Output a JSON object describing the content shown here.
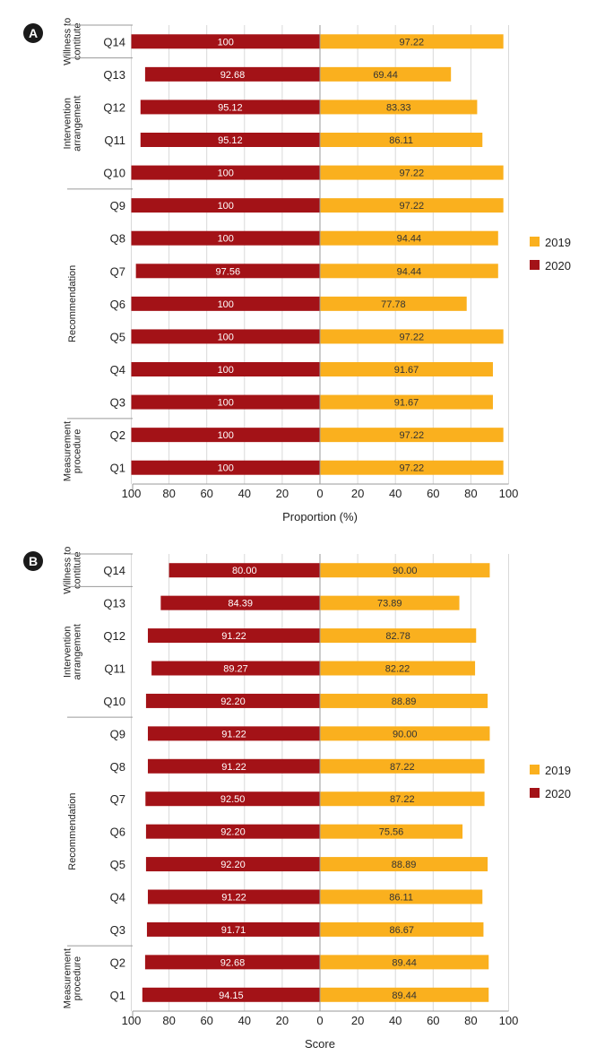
{
  "chart_data": [
    {
      "panel": "A",
      "type": "bar",
      "orientation": "horizontal-diverging",
      "xlabel": "Proportion (%)",
      "xlim": [
        -100,
        100
      ],
      "tick_labels": [
        "100",
        "80",
        "60",
        "40",
        "20",
        "0",
        "20",
        "40",
        "60",
        "80",
        "100"
      ],
      "categories": [
        "Q14",
        "Q13",
        "Q12",
        "Q11",
        "Q10",
        "Q9",
        "Q8",
        "Q7",
        "Q6",
        "Q5",
        "Q4",
        "Q3",
        "Q2",
        "Q1"
      ],
      "groups": [
        {
          "label": "Willness to contitute",
          "lines": [
            "Willness to",
            "contitute"
          ],
          "rows": [
            "Q14"
          ]
        },
        {
          "label": "Intervention arrangement",
          "lines": [
            "Intervention",
            "arrangement"
          ],
          "rows": [
            "Q13",
            "Q12",
            "Q11",
            "Q10"
          ]
        },
        {
          "label": "Recommendation",
          "lines": [
            "Recommendation"
          ],
          "rows": [
            "Q9",
            "Q8",
            "Q7",
            "Q6",
            "Q5",
            "Q4",
            "Q3"
          ]
        },
        {
          "label": "Measurement procedure",
          "lines": [
            "Measurement",
            "procedure"
          ],
          "rows": [
            "Q2",
            "Q1"
          ]
        }
      ],
      "series": [
        {
          "name": "2020",
          "side": "left",
          "values": [
            100,
            92.68,
            95.12,
            95.12,
            100,
            100,
            100,
            97.56,
            100,
            100,
            100,
            100,
            100,
            100
          ],
          "labels": [
            "100",
            "92.68",
            "95.12",
            "95.12",
            "100",
            "100",
            "100",
            "97.56",
            "100",
            "100",
            "100",
            "100",
            "100",
            "100"
          ]
        },
        {
          "name": "2019",
          "side": "right",
          "values": [
            97.22,
            69.44,
            83.33,
            86.11,
            97.22,
            97.22,
            94.44,
            94.44,
            77.78,
            97.22,
            91.67,
            91.67,
            97.22,
            97.22
          ],
          "labels": [
            "97.22",
            "69.44",
            "83.33",
            "86.11",
            "97.22",
            "97.22",
            "94.44",
            "94.44",
            "77.78",
            "97.22",
            "91.67",
            "91.67",
            "97.22",
            "97.22"
          ]
        }
      ],
      "legend": [
        "2019",
        "2020"
      ],
      "legend_position": "right"
    },
    {
      "panel": "B",
      "type": "bar",
      "orientation": "horizontal-diverging",
      "xlabel": "Score",
      "xlim": [
        -100,
        100
      ],
      "tick_labels": [
        "100",
        "80",
        "60",
        "40",
        "20",
        "0",
        "20",
        "40",
        "60",
        "80",
        "100"
      ],
      "categories": [
        "Q14",
        "Q13",
        "Q12",
        "Q11",
        "Q10",
        "Q9",
        "Q8",
        "Q7",
        "Q6",
        "Q5",
        "Q4",
        "Q3",
        "Q2",
        "Q1"
      ],
      "groups": [
        {
          "label": "Willness to contitute",
          "lines": [
            "Willness to",
            "contitute"
          ],
          "rows": [
            "Q14"
          ]
        },
        {
          "label": "Intervention arrangement",
          "lines": [
            "Intervention",
            "arrangement"
          ],
          "rows": [
            "Q13",
            "Q12",
            "Q11",
            "Q10"
          ]
        },
        {
          "label": "Recommendation",
          "lines": [
            "Recommendation"
          ],
          "rows": [
            "Q9",
            "Q8",
            "Q7",
            "Q6",
            "Q5",
            "Q4",
            "Q3"
          ]
        },
        {
          "label": "Measurement procedure",
          "lines": [
            "Measurement",
            "procedure"
          ],
          "rows": [
            "Q2",
            "Q1"
          ]
        }
      ],
      "series": [
        {
          "name": "2020",
          "side": "left",
          "values": [
            80.0,
            84.39,
            91.22,
            89.27,
            92.2,
            91.22,
            91.22,
            92.5,
            92.2,
            92.2,
            91.22,
            91.71,
            92.68,
            94.15
          ],
          "labels": [
            "80.00",
            "84.39",
            "91.22",
            "89.27",
            "92.20",
            "91.22",
            "91.22",
            "92.50",
            "92.20",
            "92.20",
            "91.22",
            "91.71",
            "92.68",
            "94.15"
          ]
        },
        {
          "name": "2019",
          "side": "right",
          "values": [
            90.0,
            73.89,
            82.78,
            82.22,
            88.89,
            90.0,
            87.22,
            87.22,
            75.56,
            88.89,
            86.11,
            86.67,
            89.44,
            89.44
          ],
          "labels": [
            "90.00",
            "73.89",
            "82.78",
            "82.22",
            "88.89",
            "90.00",
            "87.22",
            "87.22",
            "75.56",
            "88.89",
            "86.11",
            "86.67",
            "89.44",
            "89.44"
          ]
        }
      ],
      "legend": [
        "2019",
        "2020"
      ],
      "legend_position": "right"
    }
  ],
  "colors": {
    "series_2019": "#FAB01E",
    "series_2020": "#A31217",
    "axis": "#9A9A9A",
    "grid": "#D9D9D9",
    "text": "#222222",
    "bar_label_2020": "#FFFFFF",
    "bar_label_2019": "#333333",
    "panel_badge": "#1A1A1A"
  }
}
